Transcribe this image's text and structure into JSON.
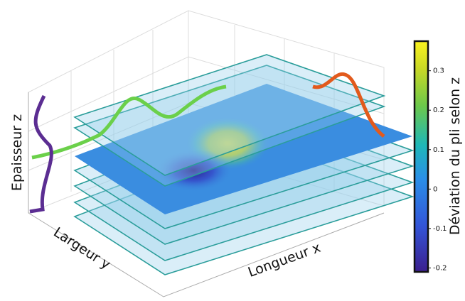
{
  "chart_data": {
    "type": "surface",
    "x_label": "Longueur x",
    "y_label": "Largeur y",
    "z_label": "Epaisseur z",
    "colorbar": {
      "label": "Déviation du pli selon z",
      "lim": [
        -0.21,
        0.375
      ],
      "ticks": [
        0.3,
        0.2,
        0.1,
        0,
        -0.1,
        -0.2
      ]
    }
  }
}
